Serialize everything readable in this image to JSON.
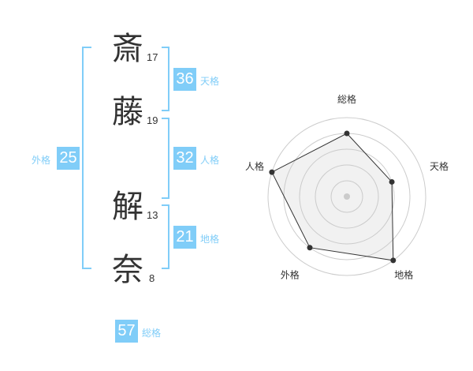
{
  "name": {
    "chars": [
      {
        "char": "斎",
        "strokes": "17"
      },
      {
        "char": "藤",
        "strokes": "19"
      },
      {
        "char": "解",
        "strokes": "13"
      },
      {
        "char": "奈",
        "strokes": "8"
      }
    ]
  },
  "kaku": {
    "tenkaku": {
      "label": "天格",
      "value": "36"
    },
    "jinkaku": {
      "label": "人格",
      "value": "32"
    },
    "chikaku": {
      "label": "地格",
      "value": "21"
    },
    "gaikaku": {
      "label": "外格",
      "value": "25"
    },
    "soukaku": {
      "label": "総格",
      "value": "57"
    }
  },
  "accent_color": "#80cdf8",
  "chart_data": {
    "type": "radar",
    "axes": [
      "総格",
      "天格",
      "地格",
      "外格",
      "人格"
    ],
    "values": [
      4,
      3,
      5,
      4,
      5
    ],
    "range": [
      0,
      5
    ],
    "grid": "circles"
  }
}
